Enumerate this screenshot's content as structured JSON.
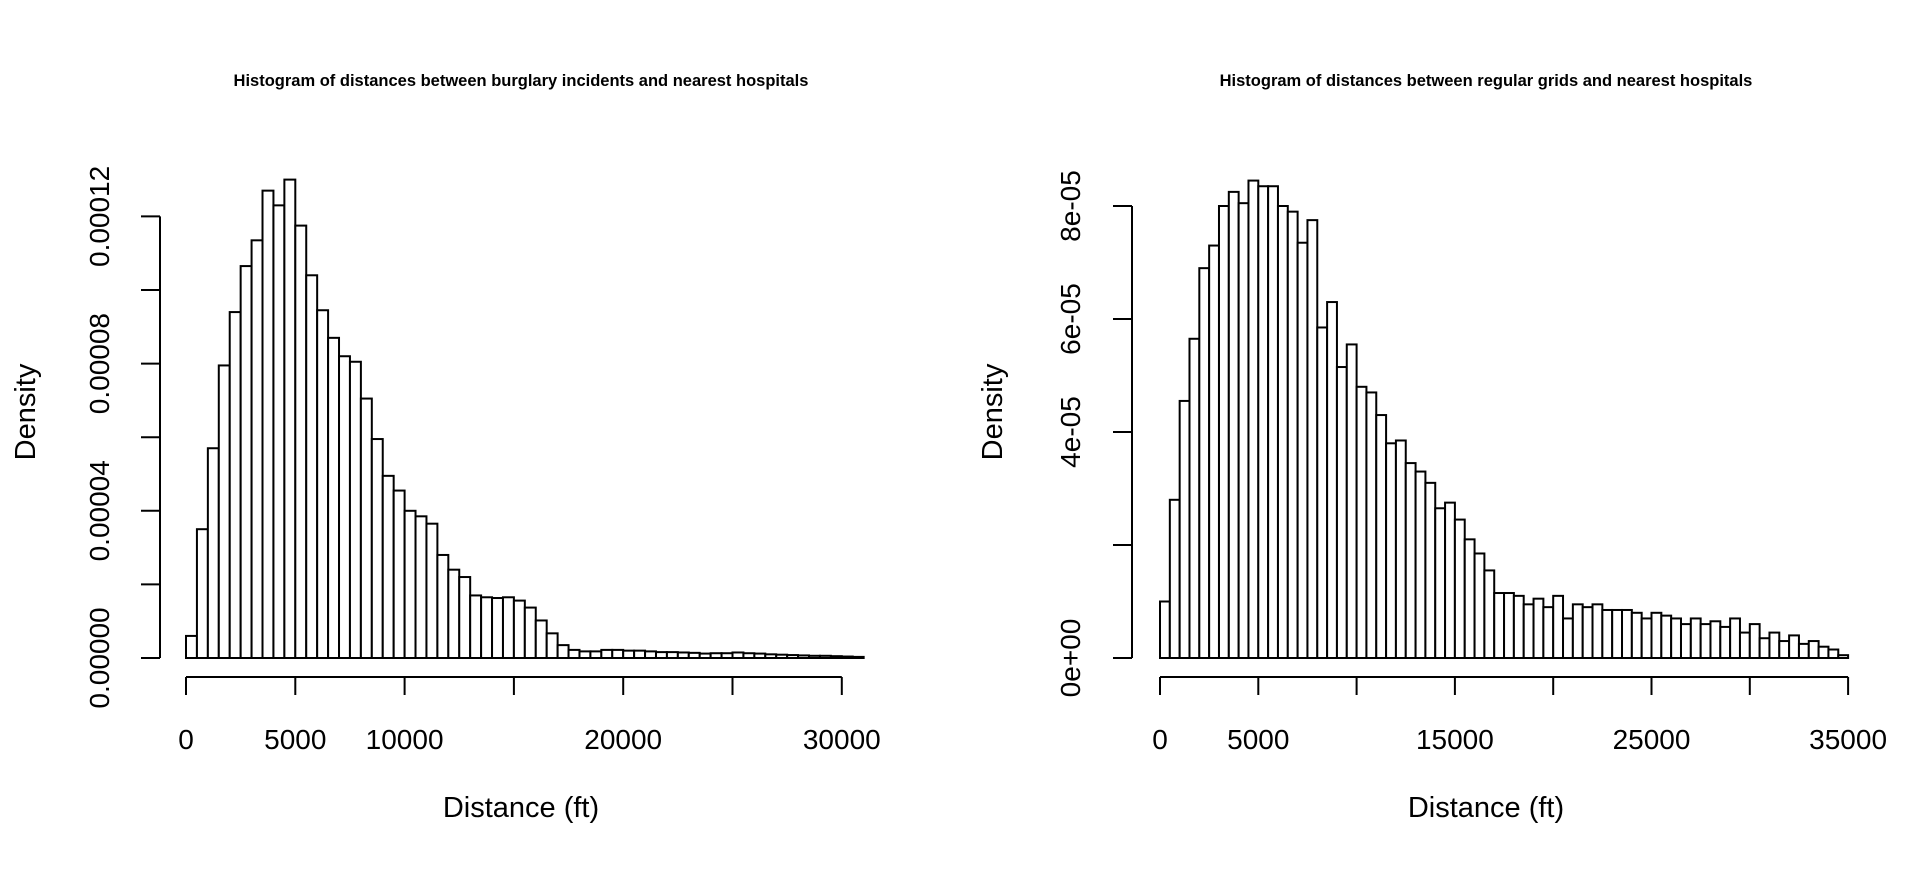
{
  "chart_data": [
    {
      "type": "bar",
      "title": "Histogram of distances between burglary incidents and nearest hospitals",
      "xlabel": "Distance (ft)",
      "ylabel": "Density",
      "bin_width": 500,
      "xlim": [
        0,
        31000
      ],
      "ylim": [
        0,
        0.00012
      ],
      "x_ticks": [
        0,
        5000,
        10000,
        15000,
        20000,
        25000,
        30000
      ],
      "x_tick_labels": [
        "0",
        "5000",
        "10000",
        "",
        "20000",
        "",
        "30000"
      ],
      "y_ticks": [
        0,
        2e-05,
        4e-05,
        6e-05,
        8e-05,
        0.0001,
        0.00012
      ],
      "y_tick_labels": [
        "0.00000",
        "",
        "0.00004",
        "",
        "0.00008",
        "",
        "0.00012"
      ],
      "grid": false,
      "values": [
        6e-06,
        3.5e-05,
        5.7e-05,
        7.95e-05,
        9.4e-05,
        0.0001065,
        0.0001135,
        0.000127,
        0.000123,
        0.00013,
        0.0001175,
        0.000104,
        9.45e-05,
        8.7e-05,
        8.2e-05,
        8.05e-05,
        7.05e-05,
        5.95e-05,
        4.95e-05,
        4.55e-05,
        4e-05,
        3.85e-05,
        3.65e-05,
        2.8e-05,
        2.4e-05,
        2.2e-05,
        1.7e-05,
        1.65e-05,
        1.63e-05,
        1.65e-05,
        1.56e-05,
        1.37e-05,
        1.02e-05,
        6.7e-06,
        3.5e-06,
        2.2e-06,
        1.8e-06,
        1.8e-06,
        2.2e-06,
        2.2e-06,
        2e-06,
        2e-06,
        1.8e-06,
        1.6e-06,
        1.6e-06,
        1.5e-06,
        1.4e-06,
        1.2e-06,
        1.3e-06,
        1.3e-06,
        1.5e-06,
        1.3e-06,
        1.2e-06,
        1e-06,
        9e-07,
        8e-07,
        7e-07,
        6e-07,
        6e-07,
        5e-07,
        4e-07,
        3e-07
      ]
    },
    {
      "type": "bar",
      "title": "Histogram of distances between regular grids and nearest hospitals",
      "xlabel": "Distance (ft)",
      "ylabel": "Density",
      "bin_width": 500,
      "xlim": [
        0,
        35000
      ],
      "ylim": [
        0,
        8e-05
      ],
      "x_ticks": [
        0,
        5000,
        10000,
        15000,
        20000,
        25000,
        30000,
        35000
      ],
      "x_tick_labels": [
        "0",
        "5000",
        "",
        "15000",
        "",
        "25000",
        "",
        "35000"
      ],
      "y_ticks": [
        0,
        2e-05,
        4e-05,
        6e-05,
        8e-05
      ],
      "y_tick_labels": [
        "0e+00",
        "",
        "4e-05",
        "6e-05",
        "8e-05"
      ],
      "grid": false,
      "values": [
        1e-05,
        2.8e-05,
        4.55e-05,
        5.65e-05,
        6.9e-05,
        7.3e-05,
        8e-05,
        8.25e-05,
        8.05e-05,
        8.45e-05,
        8.35e-05,
        8.35e-05,
        8e-05,
        7.9e-05,
        7.35e-05,
        7.75e-05,
        5.85e-05,
        6.3e-05,
        5.15e-05,
        5.55e-05,
        4.8e-05,
        4.7e-05,
        4.3e-05,
        3.8e-05,
        3.85e-05,
        3.45e-05,
        3.3e-05,
        3.1e-05,
        2.65e-05,
        2.75e-05,
        2.45e-05,
        2.1e-05,
        1.85e-05,
        1.55e-05,
        1.15e-05,
        1.15e-05,
        1.1e-05,
        9.5e-06,
        1.05e-05,
        9e-06,
        1.1e-05,
        7e-06,
        9.5e-06,
        9e-06,
        9.5e-06,
        8.5e-06,
        8.5e-06,
        8.5e-06,
        8e-06,
        7e-06,
        8e-06,
        7.5e-06,
        7e-06,
        6e-06,
        7e-06,
        6e-06,
        6.5e-06,
        5.5e-06,
        7e-06,
        4.5e-06,
        6e-06,
        3.5e-06,
        4.5e-06,
        3e-06,
        4e-06,
        2.5e-06,
        3e-06,
        2e-06,
        1.5e-06,
        5e-07
      ]
    }
  ]
}
